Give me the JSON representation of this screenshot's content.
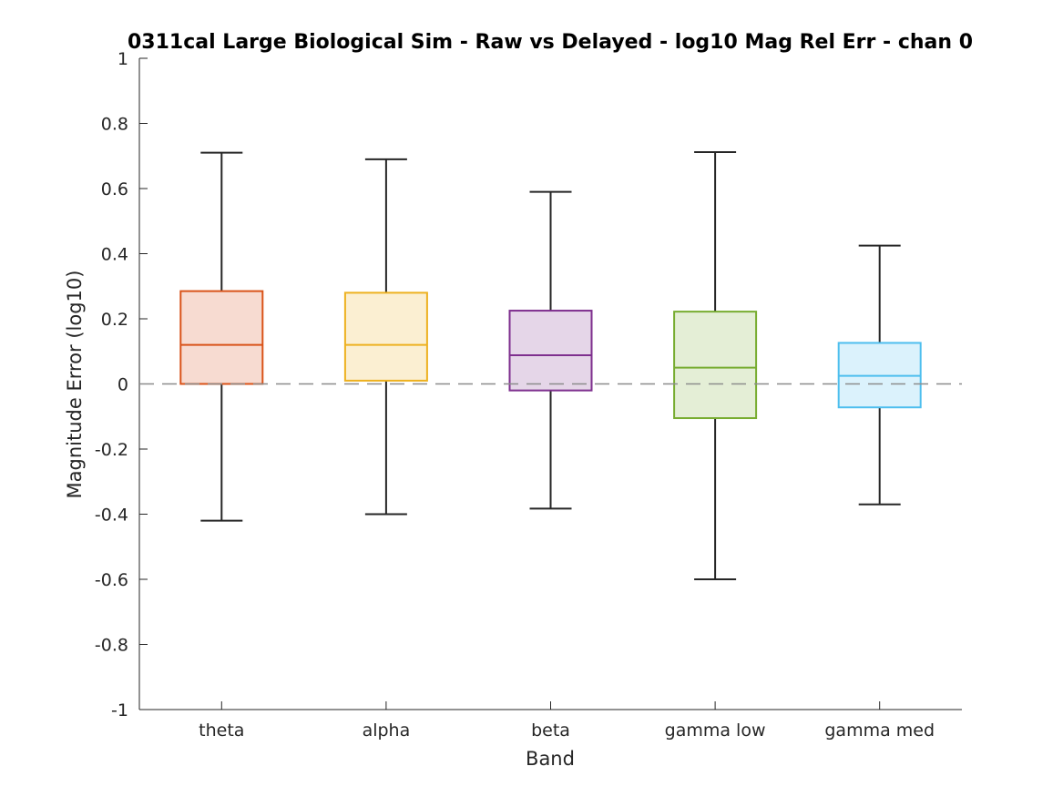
{
  "chart_data": {
    "type": "boxplot",
    "title": "0311cal Large Biological Sim - Raw vs Delayed - log10 Mag Rel Err - chan 0",
    "xlabel": "Band",
    "ylabel": "Magnitude Error (log10)",
    "ylim": [
      -1,
      1
    ],
    "yticks": [
      -1,
      -0.8,
      -0.6,
      -0.4,
      -0.2,
      0,
      0.2,
      0.4,
      0.6,
      0.8,
      1
    ],
    "ytick_labels": [
      "-1",
      "-0.8",
      "-0.6",
      "-0.4",
      "-0.2",
      "0",
      "0.2",
      "0.4",
      "0.6",
      "0.8",
      "1"
    ],
    "reference_line": 0,
    "grid": false,
    "categories": [
      "theta",
      "alpha",
      "beta",
      "gamma low",
      "gamma med"
    ],
    "boxes": [
      {
        "name": "theta",
        "whisker_low": -0.42,
        "q1": 0.0,
        "median": 0.12,
        "q3": 0.285,
        "whisker_high": 0.71,
        "color": "#d95319",
        "fill": "#f7dbd1"
      },
      {
        "name": "alpha",
        "whisker_low": -0.4,
        "q1": 0.01,
        "median": 0.12,
        "q3": 0.28,
        "whisker_high": 0.69,
        "color": "#edb120",
        "fill": "#fbefd2"
      },
      {
        "name": "beta",
        "whisker_low": -0.383,
        "q1": -0.02,
        "median": 0.088,
        "q3": 0.225,
        "whisker_high": 0.59,
        "color": "#7e2f8e",
        "fill": "#e5d6e8"
      },
      {
        "name": "gamma low",
        "whisker_low": -0.6,
        "q1": -0.105,
        "median": 0.05,
        "q3": 0.222,
        "whisker_high": 0.712,
        "color": "#77ac30",
        "fill": "#e4eed6"
      },
      {
        "name": "gamma med",
        "whisker_low": -0.37,
        "q1": -0.072,
        "median": 0.025,
        "q3": 0.126,
        "whisker_high": 0.425,
        "color": "#4dbeee",
        "fill": "#dbf2fc"
      }
    ]
  }
}
